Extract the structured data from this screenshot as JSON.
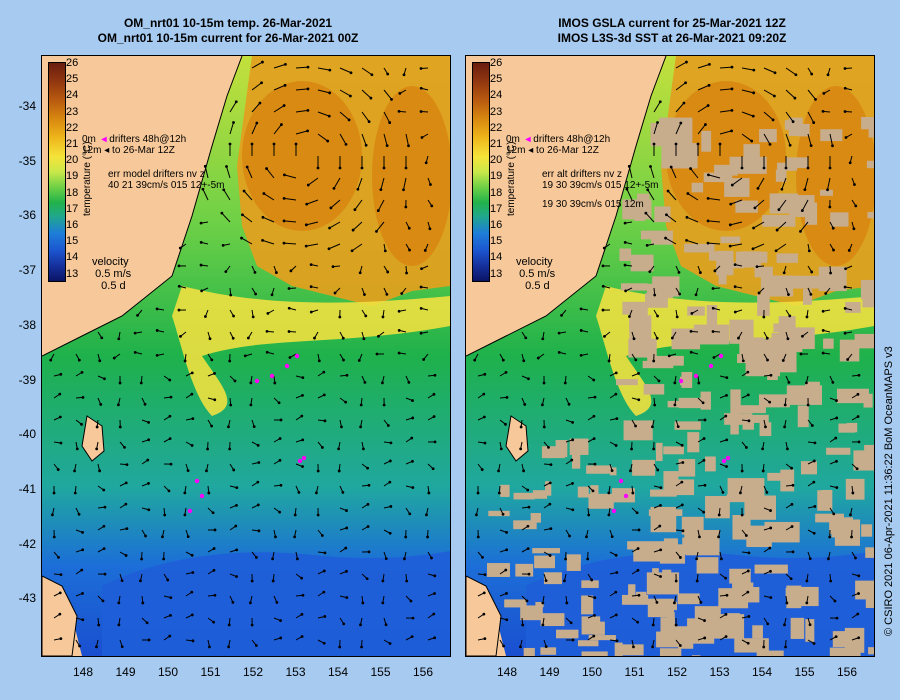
{
  "left_panel": {
    "title_line1": "OM_nrt01 10-15m temp. 26-Mar-2021",
    "title_line2": "OM_nrt01 10-15m current for 26-Mar-2021 00Z",
    "legend_drifters": "drifters 48h@12h",
    "legend_to": "to 26-Mar 12Z",
    "legend_err_title": "err model drifters nv z",
    "legend_err_values": "40 21 39cm/s 015 12+-5m",
    "depth_tag_top": "0m",
    "depth_tag_bottom": "12m"
  },
  "right_panel": {
    "title_line1": "IMOS GSLA current for 25-Mar-2021 12Z",
    "title_line2": "IMOS L3S-3d SST at 26-Mar-2021 09:20Z",
    "legend_drifters": "drifters 48h@12h",
    "legend_to": "to 26-Mar 12Z",
    "legend_err_title": "err alt drifters nv z",
    "legend_err_values_1": "19 30 39cm/s 015 12+-5m",
    "legend_err_values_2": "19 30 39cm/s 015 12m",
    "depth_tag_top": "0m",
    "depth_tag_bottom": "12m"
  },
  "colorbar": {
    "title": "temperature (°C)",
    "ticks": [
      "26",
      "25",
      "24",
      "23",
      "22",
      "21",
      "20",
      "19",
      "18",
      "17",
      "16",
      "15",
      "14",
      "13"
    ]
  },
  "velocity_legend": {
    "title": "velocity",
    "speed": "0.5 m/s",
    "duration": "0.5 d"
  },
  "latitude_labels": [
    "-34",
    "-35",
    "-36",
    "-37",
    "-38",
    "-39",
    "-40",
    "-41",
    "-42",
    "-43"
  ],
  "longitude_labels": [
    "148",
    "149",
    "150",
    "151",
    "152",
    "153",
    "154",
    "155",
    "156"
  ],
  "credit": "© CSIRO 2021   06-Apr-2021 11:36:22 BoM OceanMAPS v3",
  "colors": {
    "background": "#a6caf0",
    "land": "#f7c99a",
    "cloud_mask": "#c8ad8c",
    "drifter": "#ff00ff"
  }
}
